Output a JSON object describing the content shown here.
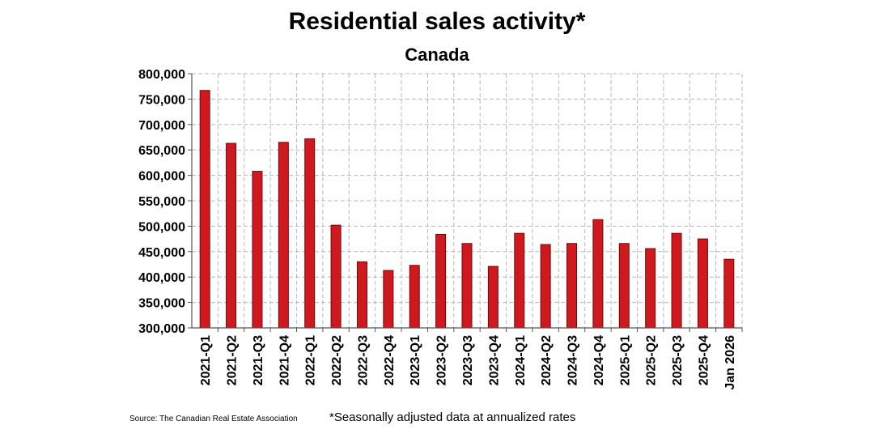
{
  "chart_data": {
    "type": "bar",
    "title": "Residential sales activity*",
    "subtitle": "Canada",
    "categories": [
      "2021-Q1",
      "2021-Q2",
      "2021-Q3",
      "2021-Q4",
      "2022-Q1",
      "2022-Q2",
      "2022-Q3",
      "2022-Q4",
      "2023-Q1",
      "2023-Q2",
      "2023-Q3",
      "2023-Q4",
      "2024-Q1",
      "2024-Q2",
      "2024-Q3",
      "2024-Q4",
      "2025-Q1",
      "2025-Q2",
      "2025-Q3",
      "2025-Q4",
      "Jan 2026"
    ],
    "values": [
      767000,
      663000,
      608000,
      665000,
      672000,
      502000,
      430000,
      413000,
      423000,
      484000,
      466000,
      421000,
      486000,
      464000,
      466000,
      513000,
      466000,
      456000,
      486000,
      475000,
      435000
    ],
    "ylim": [
      300000,
      800000
    ],
    "yticks": [
      300000,
      350000,
      400000,
      450000,
      500000,
      550000,
      600000,
      650000,
      700000,
      750000,
      800000
    ],
    "ytick_labels": [
      "300,000",
      "350,000",
      "400,000",
      "450,000",
      "500,000",
      "550,000",
      "600,000",
      "650,000",
      "700,000",
      "750,000",
      "800,000"
    ],
    "xlabel": "",
    "ylabel": "",
    "grid": true,
    "bar_color": "#d0191f",
    "bar_edge_color": "#6e0a0a"
  },
  "source_text": "Source: The Canadian Real Estate Association",
  "footnote_text": "*Seasonally adjusted data at annualized rates"
}
